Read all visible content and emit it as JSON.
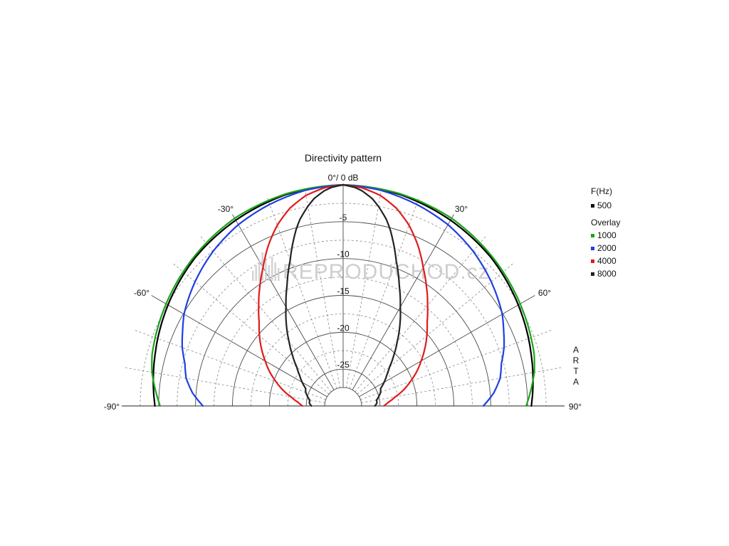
{
  "chart_data": {
    "type": "polar",
    "title": "Directivity pattern",
    "angle_range_deg": [
      -90,
      90
    ],
    "db_range": [
      -30,
      0
    ],
    "radial_ticks_db": [
      -5,
      -10,
      -15,
      -20,
      -25
    ],
    "radial_tick_labels": [
      "-5",
      "-10",
      "-15",
      "-20",
      "-25"
    ],
    "angle_labels": {
      "top": "0°/ 0 dB",
      "neg30": "-30°",
      "pos30": "30°",
      "neg60": "-60°",
      "pos60": "60°",
      "neg90": "-90°",
      "pos90": "90°"
    },
    "grid": true,
    "legend": {
      "position": "right",
      "header": "F(Hz)",
      "primary": {
        "label": "500",
        "color": "#111111"
      },
      "overlay_header": "Overlay",
      "overlay": [
        {
          "label": "1000",
          "color": "#1aa41a"
        },
        {
          "label": "2000",
          "color": "#1f3fe0"
        },
        {
          "label": "4000",
          "color": "#e01b1b"
        },
        {
          "label": "8000",
          "color": "#222222"
        }
      ]
    },
    "side_label": [
      "A",
      "R",
      "T",
      "A"
    ],
    "watermark": "REPRODUCHOD.cz",
    "series": [
      {
        "name": "500",
        "color": "#000000",
        "points": [
          [
            0,
            0
          ],
          [
            15,
            -0.3
          ],
          [
            30,
            -0.9
          ],
          [
            45,
            -1.6
          ],
          [
            60,
            -2.6
          ],
          [
            75,
            -3.6
          ],
          [
            90,
            -4.5
          ]
        ]
      },
      {
        "name": "1000",
        "color": "#1aa41a",
        "points": [
          [
            0,
            0
          ],
          [
            15,
            -0.2
          ],
          [
            30,
            -0.6
          ],
          [
            45,
            -1.4
          ],
          [
            60,
            -2.3
          ],
          [
            75,
            -3.2
          ],
          [
            80,
            -3.7
          ],
          [
            90,
            -5.2
          ]
        ]
      },
      {
        "name": "2000",
        "color": "#1f3fe0",
        "points": [
          [
            0,
            0
          ],
          [
            10,
            -0.3
          ],
          [
            20,
            -0.9
          ],
          [
            30,
            -1.6
          ],
          [
            40,
            -2.6
          ],
          [
            50,
            -3.8
          ],
          [
            60,
            -5.1
          ],
          [
            65,
            -6.0
          ],
          [
            70,
            -6.8
          ],
          [
            75,
            -7.8
          ],
          [
            80,
            -8.4
          ],
          [
            85,
            -9.5
          ],
          [
            90,
            -11.0
          ]
        ]
      },
      {
        "name": "4000",
        "color": "#e01b1b",
        "points": [
          [
            0,
            0
          ],
          [
            5,
            -0.3
          ],
          [
            10,
            -1.0
          ],
          [
            15,
            -2.2
          ],
          [
            20,
            -3.9
          ],
          [
            25,
            -6.0
          ],
          [
            30,
            -8.3
          ],
          [
            35,
            -10.3
          ],
          [
            40,
            -12.2
          ],
          [
            45,
            -13.9
          ],
          [
            50,
            -15.2
          ],
          [
            55,
            -16.5
          ],
          [
            60,
            -17.8
          ],
          [
            65,
            -19.0
          ],
          [
            70,
            -20.3
          ],
          [
            75,
            -21.5
          ],
          [
            80,
            -22.8
          ],
          [
            85,
            -23.8
          ],
          [
            90,
            -24.5
          ]
        ]
      },
      {
        "name": "8000",
        "color": "#222222",
        "points": [
          [
            0,
            0
          ],
          [
            3,
            -0.3
          ],
          [
            5,
            -0.7
          ],
          [
            8,
            -1.6
          ],
          [
            10,
            -2.5
          ],
          [
            13,
            -4.0
          ],
          [
            15,
            -5.3
          ],
          [
            18,
            -7.5
          ],
          [
            20,
            -9.0
          ],
          [
            25,
            -12.0
          ],
          [
            30,
            -14.5
          ],
          [
            35,
            -16.6
          ],
          [
            40,
            -18.6
          ],
          [
            45,
            -20.3
          ],
          [
            50,
            -21.8
          ],
          [
            55,
            -22.8
          ],
          [
            60,
            -23.6
          ],
          [
            65,
            -24.4
          ],
          [
            70,
            -24.6
          ],
          [
            75,
            -25.0
          ],
          [
            80,
            -25.4
          ],
          [
            85,
            -25.4
          ],
          [
            90,
            -25.7
          ]
        ]
      }
    ]
  }
}
